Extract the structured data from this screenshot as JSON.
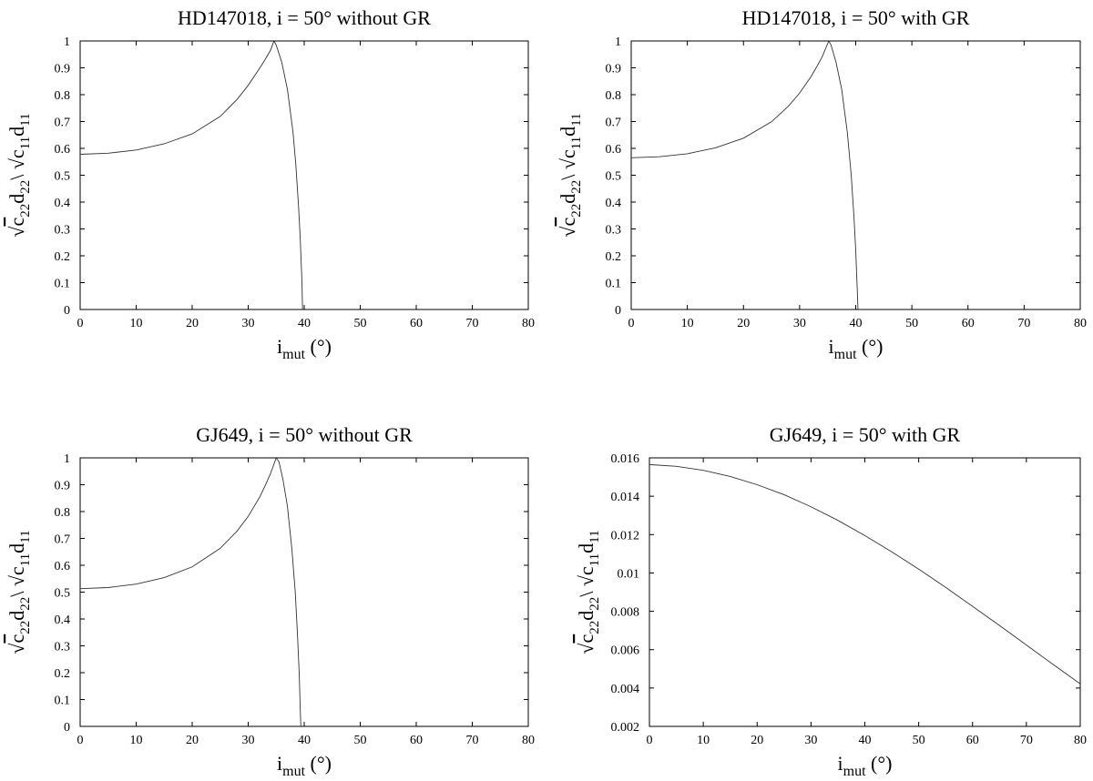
{
  "chart_data": [
    {
      "type": "line",
      "title": "HD147018, i = 50° without GR",
      "xlabel": {
        "main": "i",
        "sub": "mut",
        "unit": " (°)"
      },
      "ylabel": {
        "num": "c",
        "num_sub": "22",
        "num2": "d",
        "num2_sub": "22",
        "sep": "\\",
        "den": "c",
        "den_sub": "11",
        "den2": "d",
        "den2_sub": "11"
      },
      "xlim": [
        0,
        80
      ],
      "ylim": [
        0,
        1
      ],
      "xticks": [
        "0",
        "10",
        "20",
        "30",
        "40",
        "50",
        "60",
        "70",
        "80"
      ],
      "yticks": [
        "0",
        "0.1",
        "0.2",
        "0.3",
        "0.4",
        "0.5",
        "0.6",
        "0.7",
        "0.8",
        "0.9",
        "1"
      ],
      "grid": false,
      "series": [
        {
          "x": [
            0,
            5,
            10,
            15,
            20,
            25,
            28,
            30,
            32,
            33,
            34,
            34.6,
            35,
            36,
            37,
            38,
            38.5,
            39,
            39.3,
            39.6,
            39.7
          ],
          "y": [
            0.578,
            0.582,
            0.594,
            0.617,
            0.654,
            0.719,
            0.782,
            0.835,
            0.897,
            0.93,
            0.966,
            1.0,
            0.985,
            0.92,
            0.82,
            0.66,
            0.54,
            0.38,
            0.26,
            0.1,
            0.0
          ]
        }
      ]
    },
    {
      "type": "line",
      "title": "HD147018, i = 50° with GR",
      "xlabel": {
        "main": "i",
        "sub": "mut",
        "unit": " (°)"
      },
      "ylabel": {
        "num": "c",
        "num_sub": "22",
        "num2": "d",
        "num2_sub": "22",
        "sep": "\\",
        "den": "c",
        "den_sub": "11",
        "den2": "d",
        "den2_sub": "11"
      },
      "xlim": [
        0,
        80
      ],
      "ylim": [
        0,
        1
      ],
      "xticks": [
        "0",
        "10",
        "20",
        "30",
        "40",
        "50",
        "60",
        "70",
        "80"
      ],
      "yticks": [
        "0",
        "0.1",
        "0.2",
        "0.3",
        "0.4",
        "0.5",
        "0.6",
        "0.7",
        "0.8",
        "0.9",
        "1"
      ],
      "grid": false,
      "series": [
        {
          "x": [
            0,
            5,
            10,
            15,
            20,
            25,
            28,
            30,
            32,
            33,
            34,
            35.2,
            35.6,
            36.5,
            37.5,
            38.5,
            39.2,
            39.7,
            40,
            40.3,
            40.4
          ],
          "y": [
            0.565,
            0.569,
            0.58,
            0.602,
            0.638,
            0.699,
            0.757,
            0.806,
            0.866,
            0.902,
            0.94,
            1.0,
            0.985,
            0.92,
            0.82,
            0.66,
            0.5,
            0.34,
            0.22,
            0.06,
            0.0
          ]
        }
      ]
    },
    {
      "type": "line",
      "title": "GJ649, i = 50° without GR",
      "xlabel": {
        "main": "i",
        "sub": "mut",
        "unit": " (°)"
      },
      "ylabel": {
        "num": "c",
        "num_sub": "22",
        "num2": "d",
        "num2_sub": "22",
        "sep": "\\",
        "den": "c",
        "den_sub": "11",
        "den2": "d",
        "den2_sub": "11"
      },
      "xlim": [
        0,
        80
      ],
      "ylim": [
        0,
        1
      ],
      "xticks": [
        "0",
        "10",
        "20",
        "30",
        "40",
        "50",
        "60",
        "70",
        "80"
      ],
      "yticks": [
        "0",
        "0.1",
        "0.2",
        "0.3",
        "0.4",
        "0.5",
        "0.6",
        "0.7",
        "0.8",
        "0.9",
        "1"
      ],
      "grid": false,
      "series": [
        {
          "x": [
            0,
            5,
            10,
            15,
            20,
            25,
            28,
            30,
            32,
            33,
            34,
            35,
            35.5,
            36.2,
            37,
            37.8,
            38.4,
            38.8,
            39.1,
            39.3,
            39.4
          ],
          "y": [
            0.513,
            0.517,
            0.53,
            0.554,
            0.594,
            0.663,
            0.727,
            0.782,
            0.852,
            0.895,
            0.942,
            1.0,
            0.985,
            0.92,
            0.82,
            0.66,
            0.5,
            0.34,
            0.2,
            0.06,
            0.0
          ]
        }
      ]
    },
    {
      "type": "line",
      "title": "GJ649, i = 50° with GR",
      "xlabel": {
        "main": "i",
        "sub": "mut",
        "unit": " (°)"
      },
      "ylabel": {
        "num": "c",
        "num_sub": "22",
        "num2": "d",
        "num2_sub": "22",
        "sep": "\\",
        "den": "c",
        "den_sub": "11",
        "den2": "d",
        "den2_sub": "11"
      },
      "xlim": [
        0,
        80
      ],
      "ylim": [
        0.002,
        0.016
      ],
      "xticks": [
        "0",
        "10",
        "20",
        "30",
        "40",
        "50",
        "60",
        "70",
        "80"
      ],
      "yticks": [
        "0.002",
        "0.004",
        "0.006",
        "0.008",
        "0.01",
        "0.012",
        "0.014",
        "0.016"
      ],
      "grid": false,
      "series": [
        {
          "x": [
            0,
            5,
            10,
            15,
            20,
            25,
            30,
            35,
            40,
            45,
            50,
            55,
            60,
            65,
            70,
            75,
            80
          ],
          "y": [
            0.01565,
            0.01556,
            0.01535,
            0.01503,
            0.0146,
            0.01408,
            0.01345,
            0.01274,
            0.01195,
            0.0111,
            0.0102,
            0.00925,
            0.00826,
            0.00726,
            0.00624,
            0.00522,
            0.00422
          ]
        }
      ]
    }
  ]
}
